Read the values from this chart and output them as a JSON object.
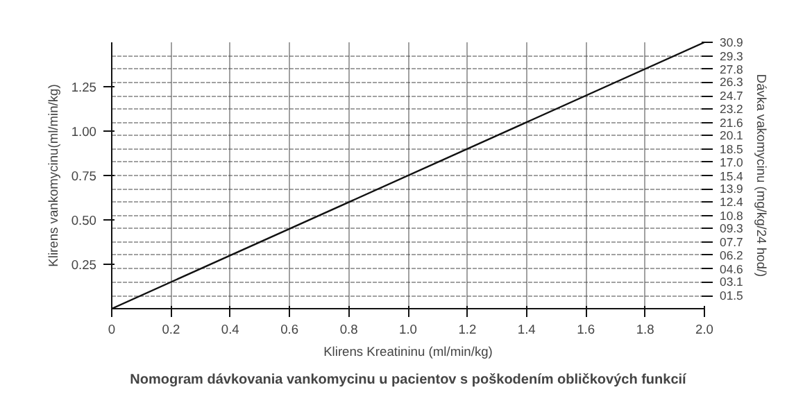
{
  "chart_data": {
    "type": "line",
    "title": "Nomogram dávkovania vankomycinu u pacientov s poškodením obličkových funkcií",
    "xlabel": "Klirens Kreatininu (ml/min/kg)",
    "ylabel": "Klirens vankomycinu(ml/min/kg)",
    "y2label": "Dávka vakomycinu (mg/kg/24 hod/)",
    "x": [
      0,
      2.0
    ],
    "series": [
      {
        "color": "#111111",
        "values": [
          0,
          1.5
        ]
      }
    ],
    "xlim": [
      0,
      2.0
    ],
    "xticks": [
      0,
      0.2,
      0.4,
      {
        "value": 0.6,
        "label": "0.6"
      },
      {
        "value": 0.8,
        "label": "0.8"
      },
      {
        "value": 1.0,
        "label": "1.0"
      },
      1.2,
      1.4,
      1.6,
      1.8,
      {
        "value": 2.0,
        "label": "2.0"
      }
    ],
    "ylim": [
      0,
      1.5
    ],
    "yticks": [
      0.25,
      {
        "value": 0.5,
        "label": "0.50"
      },
      0.75,
      {
        "value": 1.0,
        "label": "1.00"
      },
      1.25
    ],
    "y2lim": [
      0,
      30.9
    ],
    "y2ticks": [
      {
        "value": 1.5,
        "label": "01.5"
      },
      {
        "value": 3.1,
        "label": "03.1"
      },
      {
        "value": 4.6,
        "label": "04.6"
      },
      {
        "value": 6.2,
        "label": "06.2"
      },
      {
        "value": 7.7,
        "label": "07.7"
      },
      {
        "value": 9.3,
        "label": "09.3"
      },
      10.8,
      12.4,
      13.9,
      15.4,
      {
        "value": 17.0,
        "label": "17.0"
      },
      18.5,
      20.1,
      21.6,
      23.2,
      24.7,
      26.3,
      27.8,
      29.3,
      30.9
    ],
    "grid": true,
    "marker": "none",
    "line_style": "solid"
  }
}
